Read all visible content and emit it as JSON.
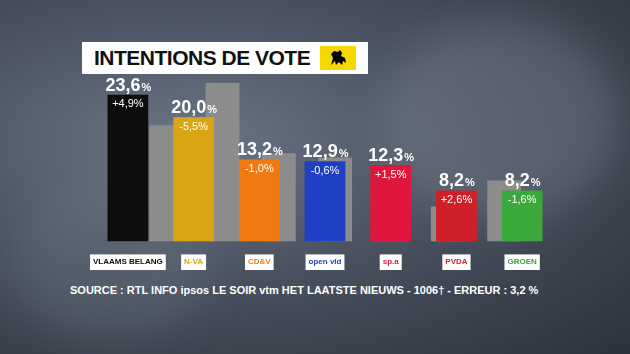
{
  "chart_data": {
    "type": "bar",
    "title": "INTENTIONS DE VOTE",
    "categories": [
      "VLAAMS BELANG",
      "N-VA",
      "CD&V",
      "open vld",
      "sp.a",
      "PVDA",
      "GROEN"
    ],
    "values": [
      23.6,
      20.0,
      13.2,
      12.9,
      12.3,
      8.2,
      8.2
    ],
    "value_labels": [
      "23,6%",
      "20,0%",
      "13,2%",
      "12,9%",
      "12,3%",
      "8,2%",
      "8,2%"
    ],
    "colors": [
      "#0d0d0d",
      "#d9a514",
      "#f07a12",
      "#1f3fc4",
      "#e0173c",
      "#d11f2a",
      "#3aa83a"
    ],
    "changes": [
      4.9,
      -5.5,
      -1.0,
      -0.6,
      1.5,
      2.6,
      -1.6
    ],
    "change_labels": [
      "+4,9%",
      "-5,5%",
      "-1,0%",
      "-0,6%",
      "+1,5%",
      "+2,6%",
      "-1,6%"
    ],
    "previous": {
      "values": [
        18.7,
        25.5,
        14.2,
        13.5,
        10.8,
        5.6,
        9.8
      ],
      "color": "#8c8c8c"
    },
    "ylim": [
      0,
      30
    ],
    "yticks": [
      0,
      10,
      20,
      30
    ],
    "grid": false,
    "tick_labels": "x",
    "data_labels": true,
    "source": "SOURCE : RTL INFO ipsos LE SOIR vtm HET LAATSTE NIEUWS - 1006† - ERREUR : 3,2 %"
  }
}
